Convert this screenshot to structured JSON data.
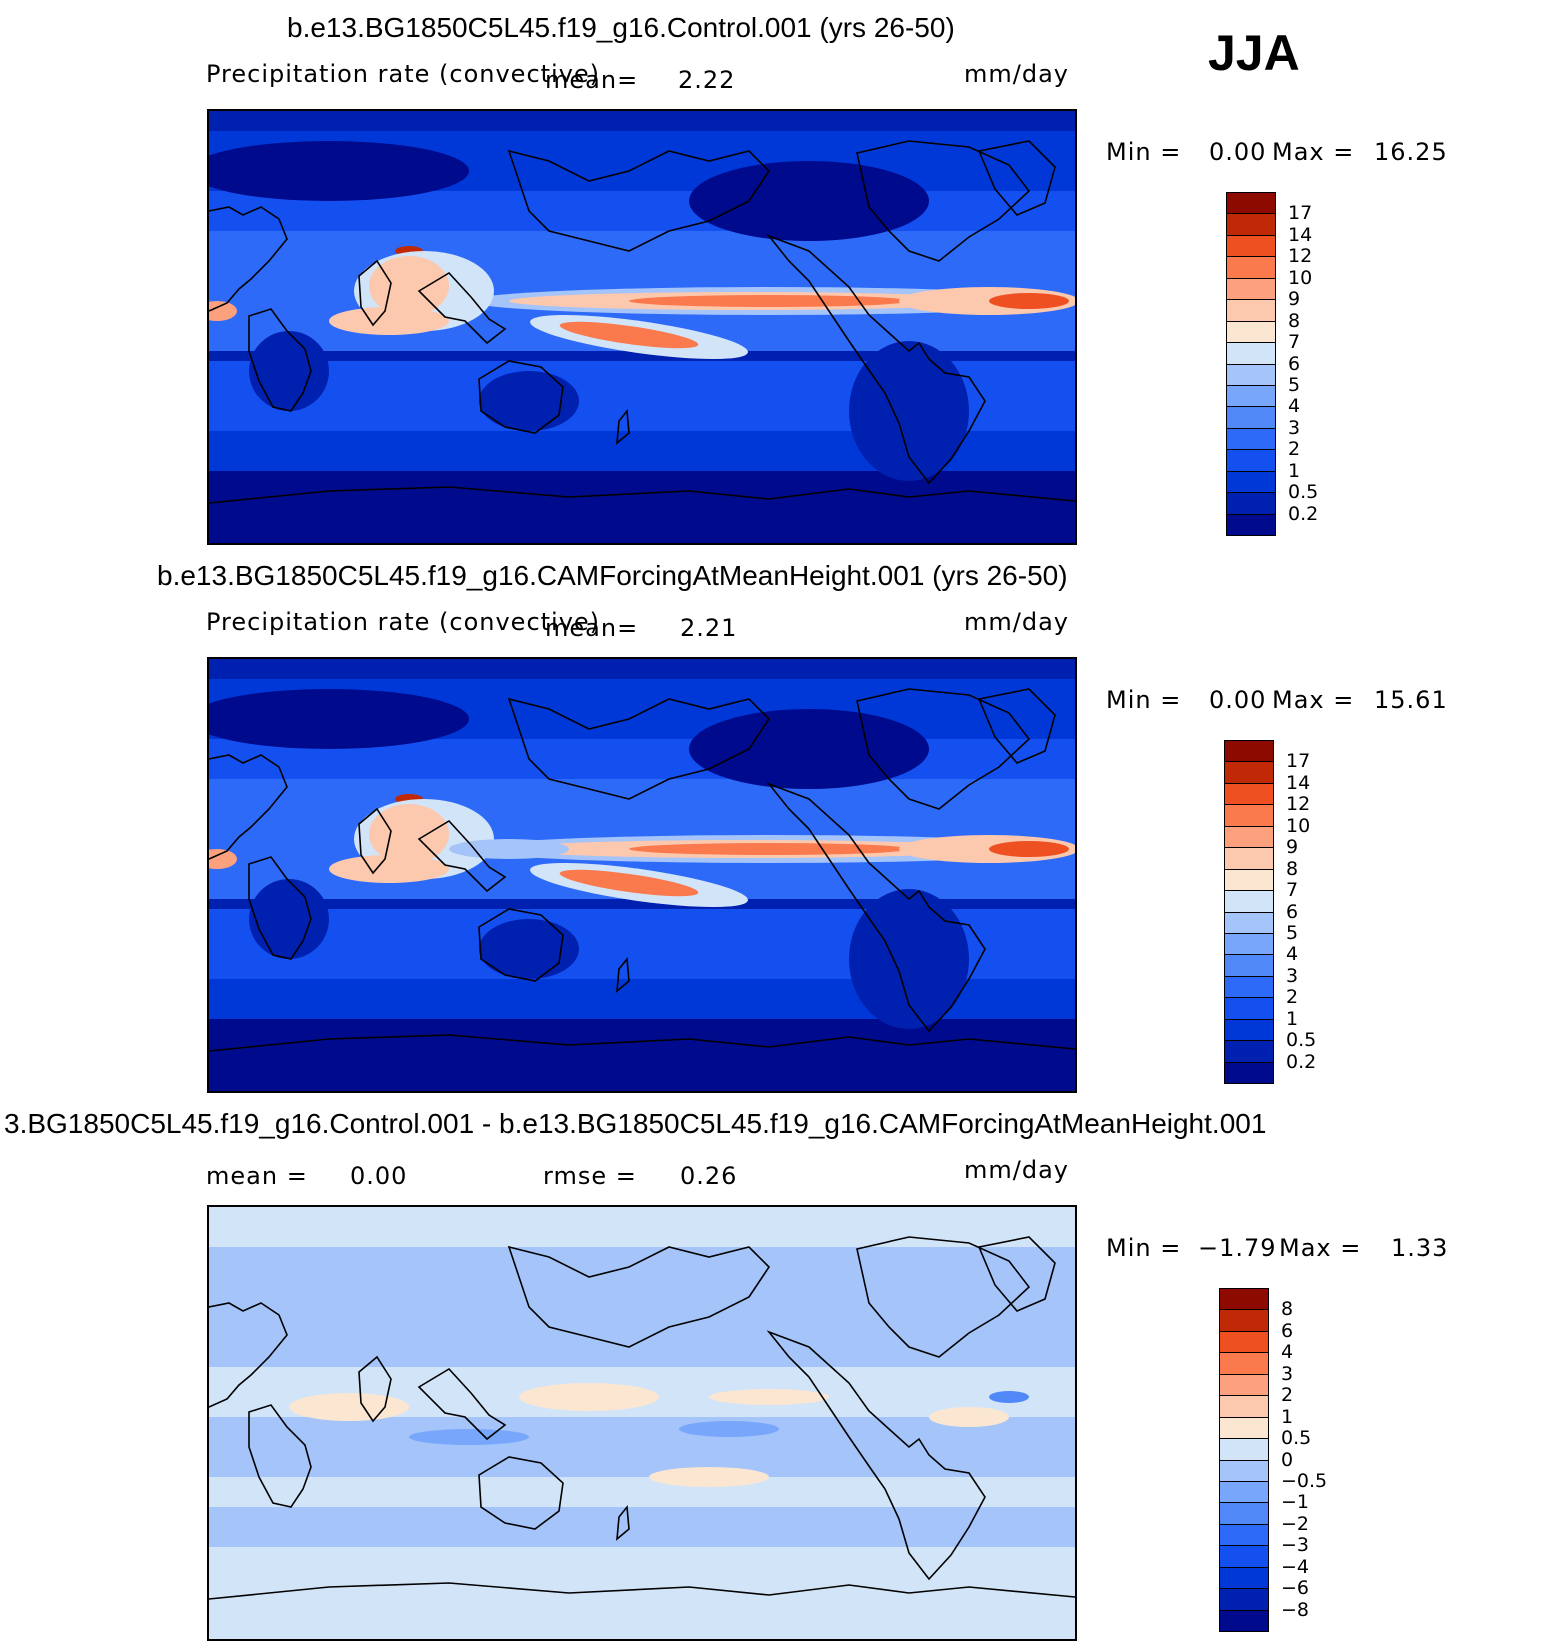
{
  "season": "JJA",
  "panels": [
    {
      "title": "b.e13.BG1850C5L45.f19_g16.Control.001 (yrs 26-50)",
      "left_label": "Precipitation rate (convective)",
      "mean_label": "mean=",
      "mean_value": "2.22",
      "units": "mm/day",
      "min_label": "Min =",
      "min_value": "0.00",
      "max_label": "Max =",
      "max_value": "16.25"
    },
    {
      "title": "b.e13.BG1850C5L45.f19_g16.CAMForcingAtMeanHeight.001 (yrs 26-50)",
      "left_label": "Precipitation rate (convective)",
      "mean_label": "mean=",
      "mean_value": "2.21",
      "units": "mm/day",
      "min_label": "Min =",
      "min_value": "0.00",
      "max_label": "Max =",
      "max_value": "15.61"
    },
    {
      "title": "3.BG1850C5L45.f19_g16.Control.001 - b.e13.BG1850C5L45.f19_g16.CAMForcingAtMeanHeight.001",
      "left_label": "mean =",
      "left_value": "0.00",
      "mean_label": "rmse =",
      "mean_value": "0.26",
      "units": "mm/day",
      "min_label": "Min =",
      "min_value": "−1.79",
      "max_label": "Max =",
      "max_value": "1.33"
    }
  ],
  "chart_data": [
    {
      "type": "heatmap",
      "title": "b.e13.BG1850C5L45.f19_g16.Control.001 (yrs 26-50)",
      "variable": "Precipitation rate (convective)",
      "units": "mm/day",
      "mean": 2.22,
      "min": 0.0,
      "max": 16.25,
      "levels": [
        "0.2",
        "0.5",
        "1",
        "2",
        "3",
        "4",
        "5",
        "6",
        "7",
        "8",
        "9",
        "10",
        "12",
        "14",
        "17"
      ],
      "colors": [
        "#000a8c",
        "#0020b0",
        "#0038d8",
        "#1450f0",
        "#2e6af8",
        "#5088f8",
        "#78a6fa",
        "#a4c4fa",
        "#d2e4f8",
        "#fbe6d2",
        "#fcc8ae",
        "#fca07e",
        "#fa7a4e",
        "#ee5022",
        "#c02806",
        "#8c0a00"
      ]
    },
    {
      "type": "heatmap",
      "title": "b.e13.BG1850C5L45.f19_g16.CAMForcingAtMeanHeight.001 (yrs 26-50)",
      "variable": "Precipitation rate (convective)",
      "units": "mm/day",
      "mean": 2.21,
      "min": 0.0,
      "max": 15.61,
      "levels": [
        "0.2",
        "0.5",
        "1",
        "2",
        "3",
        "4",
        "5",
        "6",
        "7",
        "8",
        "9",
        "10",
        "12",
        "14",
        "17"
      ],
      "colors": [
        "#000a8c",
        "#0020b0",
        "#0038d8",
        "#1450f0",
        "#2e6af8",
        "#5088f8",
        "#78a6fa",
        "#a4c4fa",
        "#d2e4f8",
        "#fbe6d2",
        "#fcc8ae",
        "#fca07e",
        "#fa7a4e",
        "#ee5022",
        "#c02806",
        "#8c0a00"
      ]
    },
    {
      "type": "heatmap",
      "title": "3.BG1850C5L45.f19_g16.Control.001 - b.e13.BG1850C5L45.f19_g16.CAMForcingAtMeanHeight.001",
      "units": "mm/day",
      "mean": 0.0,
      "rmse": 0.26,
      "min": -1.79,
      "max": 1.33,
      "levels": [
        "−8",
        "−6",
        "−4",
        "−3",
        "−2",
        "−1",
        "−0.5",
        "0",
        "0.5",
        "1",
        "2",
        "3",
        "4",
        "6",
        "8"
      ],
      "colors": [
        "#000a8c",
        "#0020b0",
        "#0038d8",
        "#1450f0",
        "#2e6af8",
        "#5088f8",
        "#78a6fa",
        "#a4c4fa",
        "#d2e4f8",
        "#fbe6d2",
        "#fcc8ae",
        "#fca07e",
        "#fa7a4e",
        "#ee5022",
        "#c02806",
        "#8c0a00"
      ]
    }
  ]
}
